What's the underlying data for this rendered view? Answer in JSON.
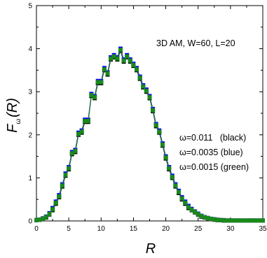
{
  "chart_data": {
    "type": "scatter",
    "annotation": "3D AM, W=60, L=20",
    "xlabel": "R",
    "ylabel_main": "F",
    "ylabel_sub": "ω",
    "ylabel_rest": "(R)",
    "xlim": [
      0,
      35
    ],
    "ylim": [
      0,
      5
    ],
    "xticks": [
      "0",
      "5",
      "10",
      "15",
      "20",
      "25",
      "30",
      "35"
    ],
    "yticks": [
      "0",
      "1",
      "2",
      "3",
      "4",
      "5"
    ],
    "legend_lines": [
      "ω=0.011   (black)",
      "ω=0.0035 (blue)",
      "ω=0.0015 (green)"
    ],
    "x": [
      0,
      0.5,
      1,
      1.5,
      2,
      2.5,
      3,
      3.5,
      4,
      4.5,
      5,
      5.5,
      6,
      6.5,
      7,
      7.5,
      8,
      8.5,
      9,
      9.5,
      10,
      10.5,
      11,
      11.5,
      12,
      12.5,
      13,
      13.5,
      14,
      14.5,
      15,
      15.5,
      16,
      16.5,
      17,
      17.5,
      18,
      18.5,
      19,
      19.5,
      20,
      20.5,
      21,
      21.5,
      22,
      22.5,
      23,
      23.5,
      24,
      24.5,
      25,
      25.5,
      26,
      26.5,
      27,
      27.5,
      28,
      28.5,
      29,
      29.5,
      30,
      30.5,
      31,
      31.5,
      32,
      32.5,
      33,
      33.5,
      34,
      34.5,
      35
    ],
    "series": [
      {
        "name": "ω=0.011 (black)",
        "color": "#000000",
        "values": [
          0.02,
          0.03,
          0.05,
          0.08,
          0.15,
          0.25,
          0.4,
          0.55,
          0.8,
          1.05,
          1.2,
          1.55,
          1.6,
          2.0,
          2.05,
          2.3,
          2.3,
          2.9,
          2.85,
          3.2,
          3.2,
          3.5,
          3.4,
          3.75,
          3.8,
          3.75,
          3.95,
          3.7,
          3.8,
          3.7,
          3.6,
          3.5,
          3.3,
          3.1,
          3.0,
          2.85,
          2.55,
          2.2,
          2.05,
          1.75,
          1.45,
          1.2,
          1.0,
          0.8,
          0.65,
          0.5,
          0.4,
          0.3,
          0.25,
          0.2,
          0.15,
          0.1,
          0.08,
          0.06,
          0.04,
          0.03,
          0.02,
          0.02,
          0.01,
          0.01,
          0.01,
          0.01,
          0.01,
          0.01,
          0.01,
          0.01,
          0.01,
          0.01,
          0.01,
          0.01,
          0.01
        ]
      },
      {
        "name": "ω=0.0035 (blue)",
        "color": "#1010ee",
        "values": [
          0.02,
          0.03,
          0.06,
          0.1,
          0.18,
          0.3,
          0.45,
          0.6,
          0.85,
          1.1,
          1.25,
          1.6,
          1.65,
          2.05,
          2.1,
          2.35,
          2.35,
          2.95,
          2.9,
          3.25,
          3.25,
          3.55,
          3.45,
          3.8,
          3.85,
          3.8,
          4.0,
          3.75,
          3.85,
          3.75,
          3.65,
          3.55,
          3.35,
          3.15,
          3.05,
          2.9,
          2.6,
          2.25,
          2.1,
          1.8,
          1.5,
          1.25,
          1.05,
          0.85,
          0.7,
          0.55,
          0.45,
          0.35,
          0.28,
          0.22,
          0.17,
          0.12,
          0.09,
          0.07,
          0.05,
          0.04,
          0.03,
          0.02,
          0.02,
          0.01,
          0.01,
          0.01,
          0.01,
          0.01,
          0.01,
          0.01,
          0.01,
          0.01,
          0.01,
          0.01,
          0.01
        ]
      },
      {
        "name": "ω=0.0015 (green)",
        "color": "#1a8a1a",
        "values": [
          0.02,
          0.03,
          0.05,
          0.09,
          0.16,
          0.27,
          0.42,
          0.57,
          0.82,
          1.07,
          1.22,
          1.57,
          1.62,
          2.02,
          2.07,
          2.32,
          2.32,
          2.92,
          2.87,
          3.22,
          3.22,
          3.52,
          3.42,
          3.77,
          3.82,
          3.77,
          3.97,
          3.72,
          3.82,
          3.72,
          3.62,
          3.52,
          3.32,
          3.12,
          3.02,
          2.87,
          2.57,
          2.22,
          2.07,
          1.77,
          1.47,
          1.22,
          1.02,
          0.82,
          0.67,
          0.52,
          0.42,
          0.32,
          0.26,
          0.21,
          0.16,
          0.11,
          0.085,
          0.065,
          0.045,
          0.035,
          0.025,
          0.02,
          0.015,
          0.01,
          0.01,
          0.01,
          0.01,
          0.01,
          0.01,
          0.01,
          0.01,
          0.01,
          0.01,
          0.01,
          0.01
        ]
      }
    ],
    "grid": false,
    "marker": "square"
  }
}
